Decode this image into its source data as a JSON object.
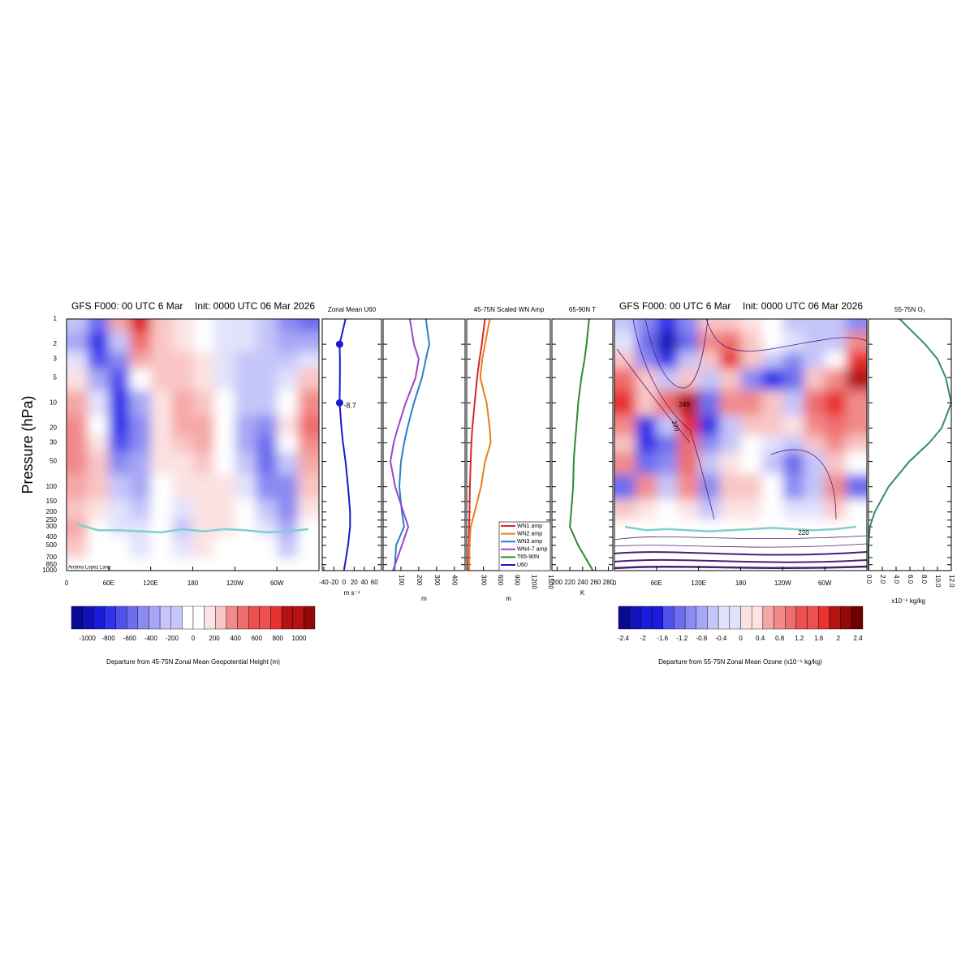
{
  "chart_data": [
    {
      "type": "heatmap",
      "title": "GFS F000: 00 UTC 6 Mar",
      "subtitle": "Init: 0000 UTC 06 Mar 2026",
      "ylabel": "Pressure (hPa)",
      "credit": "Andrea Lopez Lang",
      "x": [
        15,
        45,
        75,
        105,
        135,
        165,
        195,
        225,
        255,
        285,
        315,
        345
      ],
      "xlim": [
        0,
        360
      ],
      "xticks": [
        0,
        {
          "value": 60,
          "label": "60E"
        },
        {
          "value": 120,
          "label": "120E"
        },
        180,
        {
          "value": 240,
          "label": "120W"
        },
        {
          "value": 300,
          "label": "60W"
        }
      ],
      "y": [
        1,
        2,
        3,
        5,
        10,
        20,
        30,
        50,
        100,
        200,
        300,
        500,
        1000
      ],
      "ylim": [
        1,
        1000
      ],
      "log_y": true,
      "yticks": [
        1,
        2,
        3,
        5,
        10,
        20,
        30,
        50,
        100,
        150,
        200,
        250,
        300,
        400,
        500,
        700,
        850,
        1000
      ],
      "values": [
        [
          -200,
          -500,
          300,
          800,
          200,
          100,
          0,
          -100,
          -100,
          -200,
          -400,
          -500
        ],
        [
          -300,
          -700,
          -200,
          500,
          200,
          150,
          0,
          -100,
          -150,
          -200,
          -300,
          -300
        ],
        [
          -100,
          -600,
          -400,
          300,
          200,
          200,
          100,
          -100,
          -200,
          -200,
          -200,
          -100
        ],
        [
          100,
          -300,
          -600,
          0,
          200,
          250,
          100,
          -100,
          -200,
          -200,
          -100,
          200
        ],
        [
          300,
          -100,
          -700,
          -300,
          150,
          300,
          200,
          0,
          -200,
          -250,
          0,
          400
        ],
        [
          400,
          0,
          -700,
          -400,
          100,
          300,
          300,
          0,
          -300,
          -400,
          100,
          500
        ],
        [
          400,
          100,
          -600,
          -400,
          100,
          200,
          300,
          0,
          -300,
          -500,
          0,
          400
        ],
        [
          400,
          200,
          -400,
          -300,
          100,
          100,
          200,
          0,
          -200,
          -500,
          -200,
          300
        ],
        [
          300,
          200,
          -200,
          -300,
          0,
          100,
          100,
          100,
          -100,
          -400,
          -400,
          200
        ],
        [
          200,
          100,
          -100,
          -200,
          0,
          -100,
          100,
          100,
          0,
          -200,
          -400,
          100
        ],
        [
          300,
          0,
          -100,
          -100,
          0,
          -200,
          100,
          100,
          0,
          -100,
          -300,
          0
        ],
        [
          200,
          0,
          -50,
          -100,
          0,
          -100,
          100,
          50,
          0,
          -50,
          -200,
          0
        ],
        [
          50,
          0,
          0,
          50,
          0,
          0,
          50,
          0,
          0,
          0,
          -50,
          0
        ]
      ],
      "tropopause": [
        280,
        330,
        330,
        340,
        350,
        320,
        340,
        320,
        330,
        350,
        340,
        320
      ],
      "tropopause_color": "#7fcfcf",
      "clim": [
        -1150,
        1150
      ],
      "colorbar_ticks": [
        -1000,
        -800,
        -600,
        -400,
        -200,
        0,
        200,
        400,
        600,
        800,
        1000
      ],
      "colorbar_label": "Departure from 45-75N Zonal Mean Geopotential Height (m)"
    },
    {
      "type": "profile",
      "title": "Zonal Mean U60",
      "xlabel": "m s⁻¹",
      "xlim": [
        -43,
        74
      ],
      "xticks": [
        -40,
        -20,
        0,
        20,
        40,
        60
      ],
      "y": [
        1,
        2,
        3,
        5,
        10,
        20,
        30,
        50,
        100,
        200,
        300,
        500,
        1000
      ],
      "series": [
        {
          "name": "U60",
          "color": "#1a1acd",
          "values": [
            3,
            -8.7,
            -8,
            -8,
            -8.7,
            -5,
            -2,
            3,
            8,
            12,
            12,
            8,
            0
          ]
        }
      ],
      "points": {
        "y": [
          2,
          10
        ],
        "values": [
          -8.7,
          -8.7
        ]
      }
    },
    {
      "type": "profile",
      "title": "45-75N Scaled WN Amp",
      "xlabel": "m",
      "xlim": [
        0,
        460
      ],
      "xticks": [
        100,
        200,
        300,
        400
      ],
      "y": [
        1,
        2,
        3,
        5,
        10,
        20,
        30,
        50,
        100,
        200,
        300,
        500,
        1000
      ],
      "series": [
        {
          "name": "WN3 amp",
          "color": "#2a7fc9",
          "values": [
            240,
            259,
            240,
            218,
            173,
            136,
            118,
            100,
            91,
            105,
            118,
            73,
            64
          ]
        },
        {
          "name": "WN4-7 amp",
          "color": "#9b45c8",
          "values": [
            150,
            173,
            200,
            182,
            127,
            82,
            59,
            41,
            68,
            114,
            141,
            105,
            55
          ]
        }
      ]
    },
    {
      "type": "profile",
      "xlabel": "m",
      "xlim": [
        0,
        1500
      ],
      "xticks": [
        300,
        600,
        900,
        1200,
        1500
      ],
      "y": [
        1,
        2,
        3,
        5,
        10,
        20,
        30,
        50,
        100,
        200,
        300,
        500,
        1000
      ],
      "series": [
        {
          "name": "WN1 amp",
          "color": "#d62728",
          "values": [
            329,
            271,
            230,
            186,
            143,
            100,
            85,
            71,
            57,
            50,
            43,
            36,
            29
          ]
        },
        {
          "name": "WN2 amp",
          "color": "#e87d1e",
          "values": [
            414,
            329,
            280,
            243,
            357,
            414,
            429,
            329,
            257,
            143,
            71,
            50,
            43
          ]
        }
      ]
    },
    {
      "type": "profile",
      "title": "65-90N T",
      "xlabel": "K",
      "xlim": [
        192,
        287
      ],
      "xticks": [
        200,
        220,
        240,
        260,
        280
      ],
      "y": [
        1,
        2,
        3,
        5,
        10,
        20,
        30,
        50,
        100,
        200,
        300,
        500,
        1000
      ],
      "series": [
        {
          "name": "T65-90N",
          "color": "#2e8b2e",
          "values": [
            250,
            246,
            243,
            238,
            233,
            230,
            228,
            226,
            225,
            222,
            220,
            233,
            256
          ]
        }
      ]
    },
    {
      "type": "heatmap",
      "title": "GFS F000: 00 UTC 6 Mar",
      "subtitle": "Init: 0000 UTC 06 Mar 2026",
      "x": [
        15,
        45,
        75,
        105,
        135,
        165,
        195,
        225,
        255,
        285,
        315,
        345
      ],
      "xlim": [
        0,
        360
      ],
      "xticks": [
        0,
        {
          "value": 60,
          "label": "60E"
        },
        {
          "value": 120,
          "label": "120E"
        },
        180,
        {
          "value": 240,
          "label": "120W"
        },
        {
          "value": 300,
          "label": "60W"
        }
      ],
      "y": [
        1,
        2,
        3,
        5,
        10,
        20,
        30,
        50,
        100,
        200,
        300,
        500,
        1000
      ],
      "values": [
        [
          -0.4,
          -0.8,
          -1.6,
          -0.8,
          0.4,
          0.4,
          0.2,
          0,
          -0.4,
          -0.4,
          -0.4,
          -0.8
        ],
        [
          -0.2,
          -1.2,
          -2.0,
          -1.2,
          0.8,
          1.2,
          0.4,
          0,
          -0.2,
          -0.4,
          -0.4,
          0.8
        ],
        [
          0.4,
          -0.8,
          -1.6,
          -0.4,
          0.4,
          1.6,
          0.4,
          -0.4,
          -0.8,
          -0.4,
          0,
          1.6
        ],
        [
          1.2,
          0.4,
          -0.4,
          0.4,
          -0.4,
          0.4,
          -0.8,
          -1.6,
          -1.2,
          0.4,
          0.8,
          2.0
        ],
        [
          1.6,
          0.4,
          1.2,
          2.0,
          -1.2,
          0.8,
          0.8,
          0.4,
          -0.4,
          1.2,
          1.6,
          0.8
        ],
        [
          0.8,
          -1.6,
          -0.4,
          1.6,
          -1.6,
          -0.4,
          0.4,
          0.4,
          0.2,
          0.8,
          1.2,
          0.8
        ],
        [
          0.4,
          -1.6,
          -1.2,
          1.2,
          -0.8,
          -0.4,
          0,
          -0.2,
          -0.4,
          0.4,
          0.8,
          0.4
        ],
        [
          0.8,
          -1.2,
          -0.8,
          1.2,
          -0.4,
          0.2,
          0,
          -0.4,
          -1.2,
          -0.4,
          0.4,
          0
        ],
        [
          -1.2,
          0.8,
          -0.4,
          0.8,
          -0.8,
          0.4,
          0.4,
          0,
          -0.8,
          -0.4,
          0.8,
          -1.2
        ],
        [
          0.4,
          0.2,
          0,
          0.2,
          -0.4,
          0.2,
          0.2,
          0,
          -0.2,
          -0.2,
          0.4,
          0
        ],
        [
          0,
          0,
          0,
          0,
          0,
          0,
          0,
          0,
          0,
          0,
          0,
          0
        ],
        [
          0,
          0,
          0,
          0,
          0,
          0,
          0,
          0,
          0,
          0,
          0,
          0
        ],
        [
          0,
          0,
          0,
          0,
          0,
          0,
          0,
          0,
          0,
          0,
          0,
          0
        ]
      ],
      "tropopause": [
        300,
        330,
        320,
        330,
        340,
        330,
        320,
        310,
        320,
        330,
        320,
        300
      ],
      "tropopause_color": "#7fcfcf",
      "contour_labels": [
        240,
        220,
        220
      ],
      "clim": [
        -2.5,
        2.5
      ],
      "colorbar_ticks": [
        -2.4,
        -2,
        -1.6,
        -1.2,
        -0.8,
        -0.4,
        0,
        0.4,
        0.8,
        1.2,
        1.6,
        2,
        2.4
      ],
      "colorbar_label": "Departure from 55-75N Zonal Mean Ozone (x10⁻⁶ kg/kg)"
    },
    {
      "type": "profile",
      "title": "55-75N O₃",
      "xlabel": "x10⁻⁶ kg/kg",
      "xlim": [
        0,
        12
      ],
      "xticks": [
        {
          "value": 0,
          "label": "0.0"
        },
        {
          "value": 2,
          "label": "2.0"
        },
        {
          "value": 4,
          "label": "4.0"
        },
        {
          "value": 6,
          "label": "6.0"
        },
        {
          "value": 8,
          "label": "8.0"
        },
        {
          "value": 10,
          "label": "10.0"
        },
        {
          "value": 12,
          "label": "12.0"
        }
      ],
      "y": [
        1,
        2,
        3,
        5,
        10,
        20,
        30,
        50,
        100,
        200,
        300,
        500,
        1000
      ],
      "series": [
        {
          "name": "55-75N O₃",
          "color": "#3a8a70",
          "values": [
            4.5,
            8.2,
            10,
            11.2,
            12,
            10.6,
            8.8,
            5.9,
            2.9,
            0.9,
            0.2,
            0,
            0
          ]
        }
      ]
    }
  ]
}
